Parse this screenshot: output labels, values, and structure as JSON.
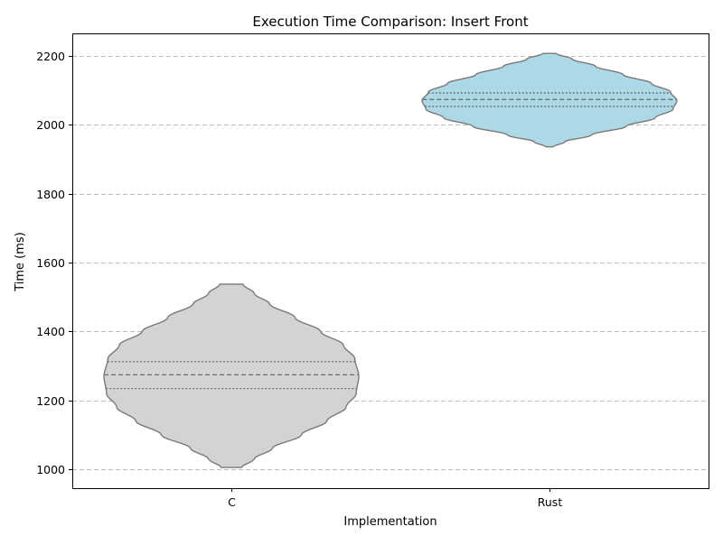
{
  "chart_data": {
    "type": "violin",
    "title": "Execution Time Comparison: Insert Front",
    "xlabel": "Implementation",
    "ylabel": "Time (ms)",
    "categories": [
      "C",
      "Rust"
    ],
    "ylim": [
      945,
      2265
    ],
    "yticks": [
      1000,
      1200,
      1400,
      1600,
      1800,
      2000,
      2200
    ],
    "grid": "y-dashed",
    "series": [
      {
        "category": "C",
        "color": "#d3d3d3",
        "min": 1005,
        "max": 1537,
        "q1": 1234,
        "median": 1274,
        "q3": 1312,
        "density_profile": [
          [
            1005,
            0.08
          ],
          [
            1030,
            0.18
          ],
          [
            1060,
            0.32
          ],
          [
            1100,
            0.55
          ],
          [
            1140,
            0.75
          ],
          [
            1180,
            0.9
          ],
          [
            1220,
            0.98
          ],
          [
            1270,
            1.0
          ],
          [
            1320,
            0.97
          ],
          [
            1360,
            0.88
          ],
          [
            1400,
            0.7
          ],
          [
            1440,
            0.5
          ],
          [
            1480,
            0.3
          ],
          [
            1510,
            0.18
          ],
          [
            1537,
            0.09
          ]
        ]
      },
      {
        "category": "Rust",
        "color": "#add8e6",
        "min": 1936,
        "max": 2207,
        "q1": 2053,
        "median": 2073,
        "q3": 2092,
        "density_profile": [
          [
            1936,
            0.03
          ],
          [
            1950,
            0.12
          ],
          [
            1970,
            0.33
          ],
          [
            1995,
            0.6
          ],
          [
            2020,
            0.83
          ],
          [
            2045,
            0.97
          ],
          [
            2070,
            1.0
          ],
          [
            2095,
            0.95
          ],
          [
            2120,
            0.8
          ],
          [
            2145,
            0.58
          ],
          [
            2170,
            0.36
          ],
          [
            2190,
            0.18
          ],
          [
            2207,
            0.05
          ]
        ]
      }
    ]
  }
}
